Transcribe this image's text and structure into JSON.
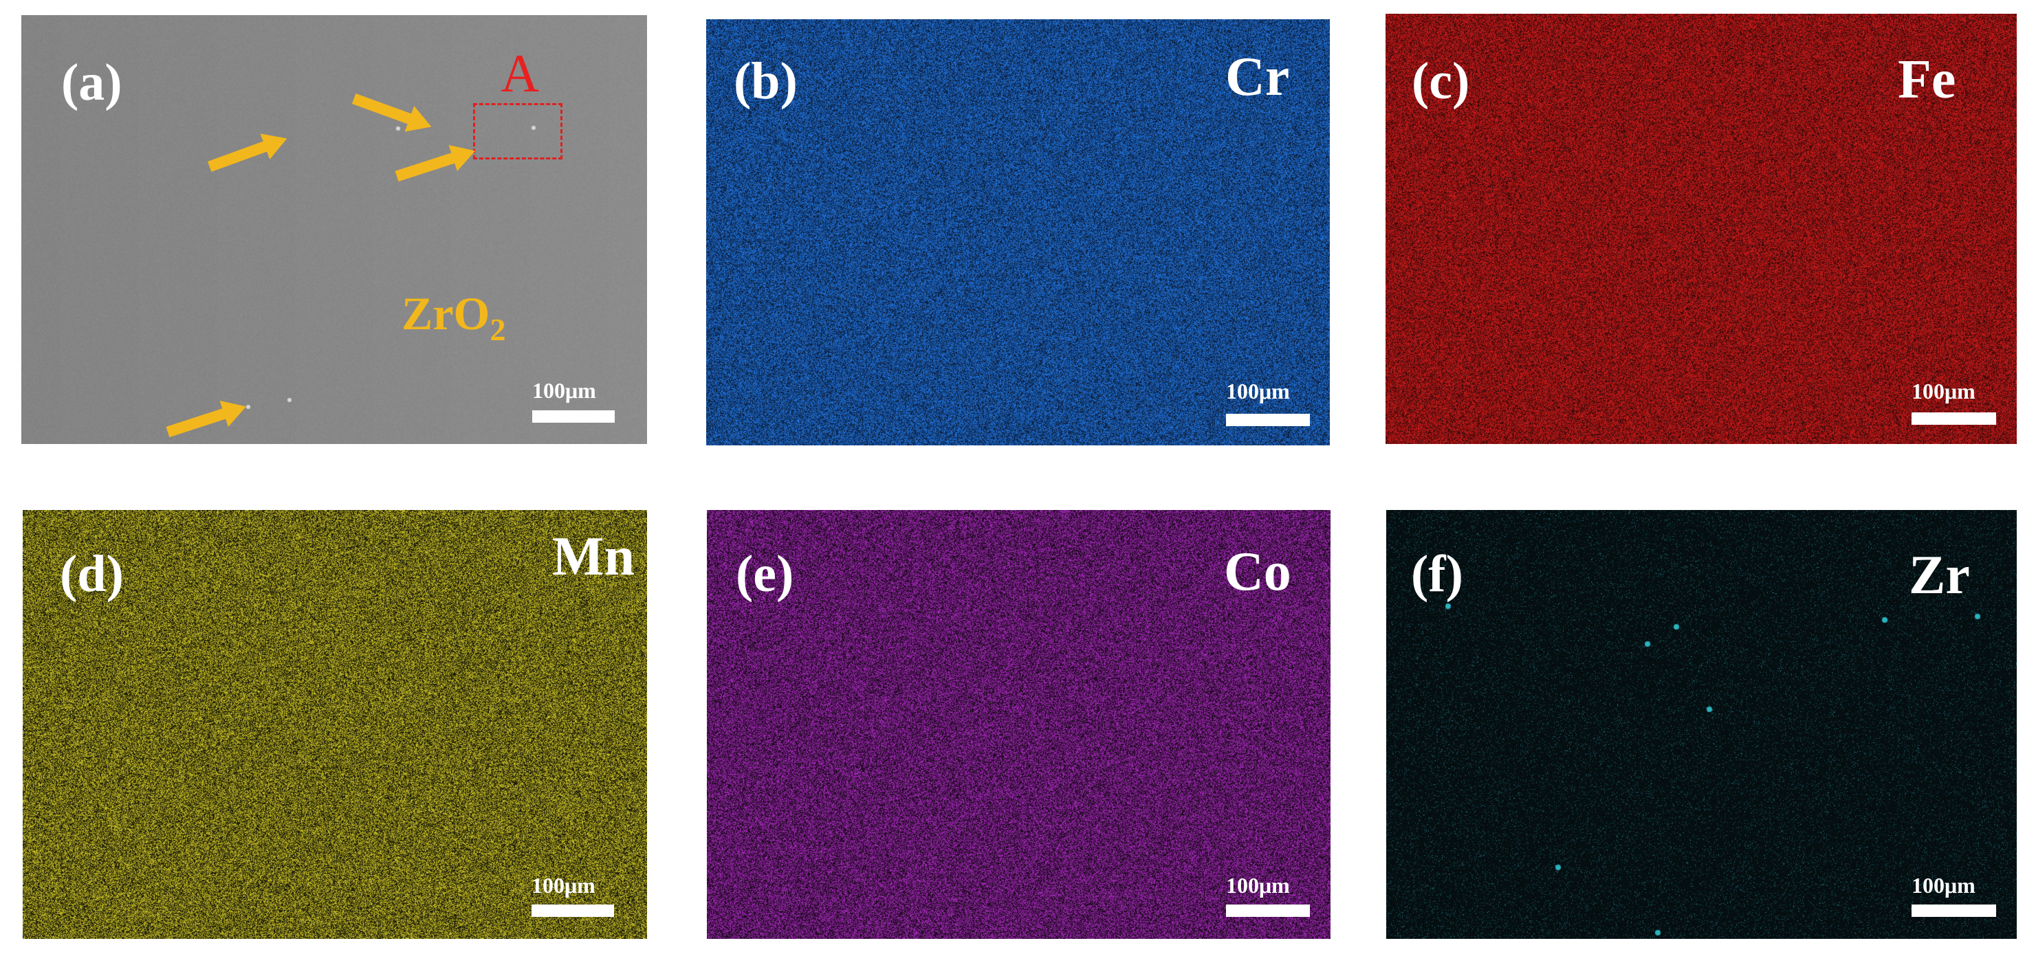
{
  "panels": [
    {
      "id": "a",
      "label": "(a)",
      "element": "",
      "scale": "100μm",
      "bg": "#8a8a8a",
      "dot": "#8a8a8a",
      "density": 0.0
    },
    {
      "id": "b",
      "label": "(b)",
      "element": "Cr",
      "scale": "100μm",
      "bg": "#0a1a33",
      "dot": "#1f6fd6",
      "density": 0.62
    },
    {
      "id": "c",
      "label": "(c)",
      "element": "Fe",
      "scale": "100μm",
      "bg": "#2a0707",
      "dot": "#c81a1a",
      "density": 0.68
    },
    {
      "id": "d",
      "label": "(d)",
      "element": "Mn",
      "scale": "100μm",
      "bg": "#141408",
      "dot": "#c9c026",
      "density": 0.55
    },
    {
      "id": "e",
      "label": "(e)",
      "element": "Co",
      "scale": "100μm",
      "bg": "#160716",
      "dot": "#a329b8",
      "density": 0.55
    },
    {
      "id": "f",
      "label": "(f)",
      "element": "Zr",
      "scale": "100μm",
      "bg": "#04090b",
      "dot": "#1e6e78",
      "density": 0.06
    }
  ],
  "sem_annotations": {
    "region_label": "A",
    "phase_label": "ZrO",
    "phase_subscript": "2",
    "arrow_color": "#f2b71c",
    "region_color": "#e02020"
  }
}
